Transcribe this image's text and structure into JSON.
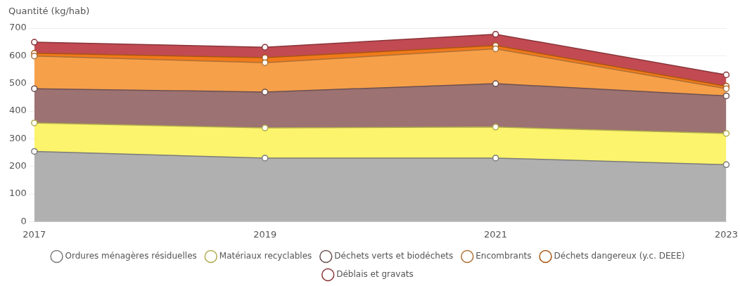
{
  "chart_data": {
    "type": "area",
    "ylabel": "Quantité (kg/hab)",
    "categories": [
      "2017",
      "2019",
      "2021",
      "2023"
    ],
    "stacked": true,
    "ylim": [
      0,
      700
    ],
    "yticks": [
      0,
      100,
      200,
      300,
      400,
      500,
      600,
      700
    ],
    "grid": "y",
    "legend": "bottom",
    "marker": "circle",
    "series": [
      {
        "name": "Ordures ménagères résiduelles",
        "color": "#b0b0b0",
        "values": [
          254,
          230,
          230,
          206
        ]
      },
      {
        "name": "Matériaux recyclables",
        "color": "#fbf46c",
        "values": [
          103,
          109,
          112,
          113
        ]
      },
      {
        "name": "Déchets verts et biodéchets",
        "color": "#9c7272",
        "values": [
          124,
          130,
          157,
          136
        ]
      },
      {
        "name": "Encombrants",
        "color": "#f7a04a",
        "values": [
          118,
          106,
          126,
          26
        ]
      },
      {
        "name": "Déchets dangereux (y.c. DEEE)",
        "color": "#f07a1a",
        "values": [
          10,
          18,
          12,
          9
        ]
      },
      {
        "name": "Déblais et gravats",
        "color": "#c24a52",
        "values": [
          40,
          38,
          41,
          41
        ]
      }
    ]
  }
}
